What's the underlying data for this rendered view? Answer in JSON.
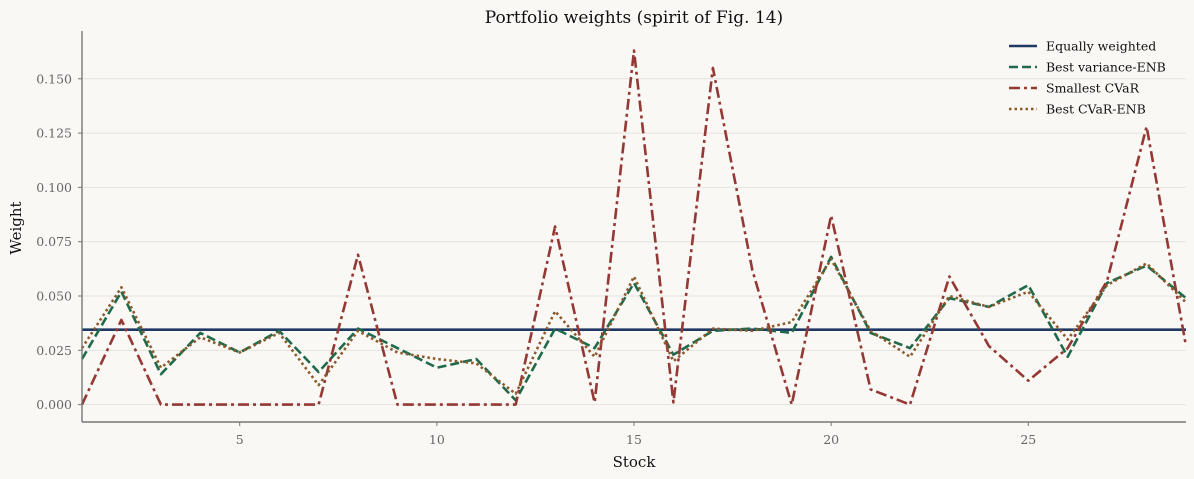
{
  "chart_data": {
    "type": "line",
    "title": "Portfolio weights (spirit of Fig. 14)",
    "xlabel": "Stock",
    "ylabel": "Weight",
    "xlim": [
      1,
      29
    ],
    "ylim": [
      -0.008,
      0.172
    ],
    "xticks": [
      5,
      10,
      15,
      20,
      25
    ],
    "yticks": [
      0.0,
      0.025,
      0.05,
      0.075,
      0.1,
      0.125,
      0.15
    ],
    "ytick_labels": [
      "0.000",
      "0.025",
      "0.050",
      "0.075",
      "0.100",
      "0.125",
      "0.150"
    ],
    "grid": "horizontal",
    "legend": "top-right",
    "x": [
      1,
      2,
      3,
      4,
      5,
      6,
      7,
      8,
      9,
      10,
      11,
      12,
      13,
      14,
      15,
      16,
      17,
      18,
      19,
      20,
      21,
      22,
      23,
      24,
      25,
      26,
      27,
      28,
      29
    ],
    "series": [
      {
        "name": "Equally weighted",
        "style": "solid",
        "color": "#1f3864",
        "values": [
          0.0345,
          0.0345,
          0.0345,
          0.0345,
          0.0345,
          0.0345,
          0.0345,
          0.0345,
          0.0345,
          0.0345,
          0.0345,
          0.0345,
          0.0345,
          0.0345,
          0.0345,
          0.0345,
          0.0345,
          0.0345,
          0.0345,
          0.0345,
          0.0345,
          0.0345,
          0.0345,
          0.0345,
          0.0345,
          0.0345,
          0.0345,
          0.0345,
          0.0345
        ]
      },
      {
        "name": "Best variance-ENB",
        "style": "dashed",
        "color": "#20694a",
        "values": [
          0.021,
          0.052,
          0.014,
          0.033,
          0.024,
          0.034,
          0.015,
          0.035,
          0.026,
          0.017,
          0.021,
          0.002,
          0.035,
          0.026,
          0.056,
          0.023,
          0.034,
          0.035,
          0.033,
          0.068,
          0.033,
          0.026,
          0.049,
          0.045,
          0.055,
          0.022,
          0.056,
          0.064,
          0.049
        ]
      },
      {
        "name": "Smallest CVaR",
        "style": "dashdot",
        "color": "#943833",
        "values": [
          0.0,
          0.039,
          0.0,
          0.0,
          0.0,
          0.0,
          0.0,
          0.069,
          0.0,
          0.0,
          0.0,
          0.0,
          0.082,
          0.001,
          0.163,
          0.001,
          0.155,
          0.062,
          0.0,
          0.087,
          0.007,
          0.0,
          0.059,
          0.027,
          0.011,
          0.026,
          0.057,
          0.128,
          0.027
        ]
      },
      {
        "name": "Best CVaR-ENB",
        "style": "dotted",
        "color": "#8a5a2b",
        "values": [
          0.026,
          0.054,
          0.017,
          0.031,
          0.024,
          0.033,
          0.009,
          0.034,
          0.024,
          0.021,
          0.019,
          0.005,
          0.043,
          0.022,
          0.059,
          0.02,
          0.035,
          0.034,
          0.038,
          0.067,
          0.034,
          0.022,
          0.05,
          0.045,
          0.052,
          0.03,
          0.055,
          0.065,
          0.047
        ]
      }
    ]
  }
}
